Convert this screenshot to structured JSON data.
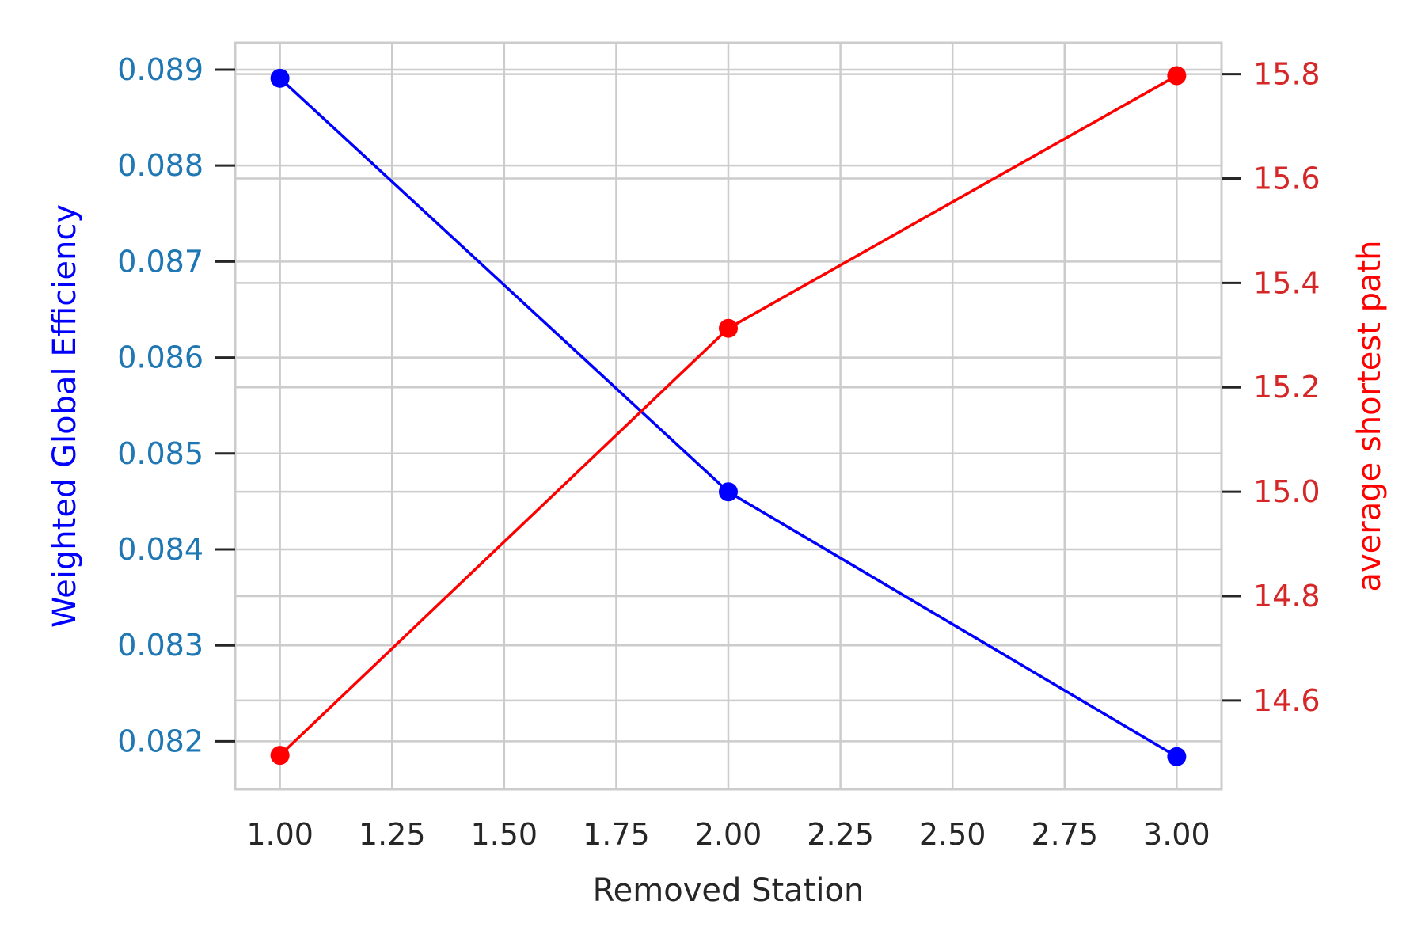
{
  "chart_data": {
    "type": "line",
    "xlabel": "Removed Station",
    "xlim": [
      0.9,
      3.1
    ],
    "x_ticks": [
      1.0,
      1.25,
      1.5,
      1.75,
      2.0,
      2.25,
      2.5,
      2.75,
      3.0
    ],
    "x_tick_labels": [
      "1.00",
      "1.25",
      "1.50",
      "1.75",
      "2.00",
      "2.25",
      "2.50",
      "2.75",
      "3.00"
    ],
    "grid": true,
    "series": [
      {
        "axis": "left",
        "color": "#0000ff",
        "x": [
          1.0,
          2.0,
          3.0
        ],
        "y": [
          0.08891,
          0.0846,
          0.08184
        ]
      },
      {
        "axis": "right",
        "color": "#ff0000",
        "x": [
          1.0,
          2.0,
          3.0
        ],
        "y": [
          14.495,
          15.313,
          15.797
        ]
      }
    ],
    "y_left": {
      "label": "Weighted Global Efficiency",
      "label_color": "#0000ff",
      "tick_color": "#1f77b4",
      "ylim": [
        0.0815,
        0.08928
      ],
      "ticks": [
        0.082,
        0.083,
        0.084,
        0.085,
        0.086,
        0.087,
        0.088,
        0.089
      ],
      "tick_labels": [
        "0.082",
        "0.083",
        "0.084",
        "0.085",
        "0.086",
        "0.087",
        "0.088",
        "0.089"
      ]
    },
    "y_right": {
      "label": "average shortest path",
      "label_color": "#ff0000",
      "tick_color": "#d62728",
      "ylim": [
        14.43,
        15.86
      ],
      "ticks": [
        14.6,
        14.8,
        15.0,
        15.2,
        15.4,
        15.6,
        15.8
      ],
      "tick_labels": [
        "14.6",
        "14.8",
        "15.0",
        "15.2",
        "15.4",
        "15.6",
        "15.8"
      ]
    }
  }
}
